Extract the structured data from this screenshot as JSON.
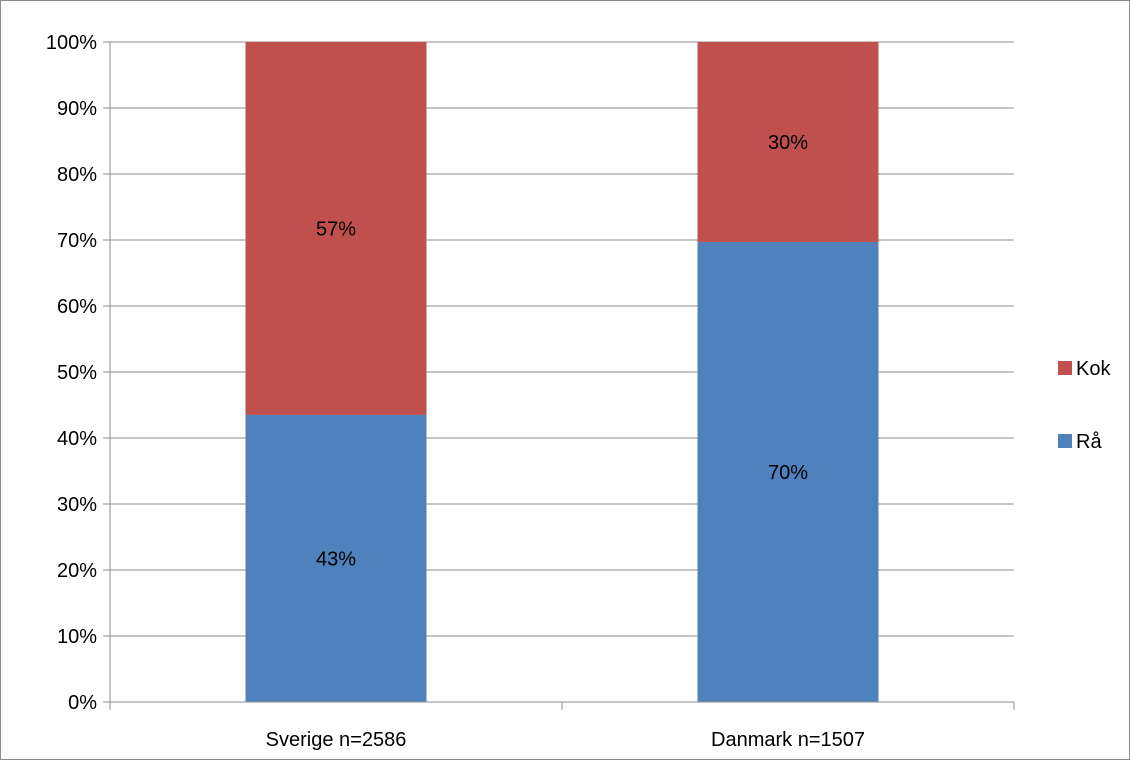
{
  "chart_data": {
    "type": "bar",
    "stacked": true,
    "percent": true,
    "title": "",
    "xlabel": "",
    "ylabel": "",
    "ylim": [
      0,
      100
    ],
    "y_ticks": [
      "0%",
      "10%",
      "20%",
      "30%",
      "40%",
      "50%",
      "60%",
      "70%",
      "80%",
      "90%",
      "100%"
    ],
    "grid": true,
    "legend_position": "right",
    "categories": [
      "Sverige n=2586",
      "Danmark n=1507"
    ],
    "series": [
      {
        "name": "Rå",
        "values": [
          43.5,
          69.7
        ],
        "labels": [
          "43%",
          "70%"
        ],
        "color": "#4f81bd"
      },
      {
        "name": "Kok",
        "values": [
          56.5,
          30.3
        ],
        "labels": [
          "57%",
          "30%"
        ],
        "color": "#c0504d"
      }
    ],
    "legend_order": [
      "Kok",
      "Rå"
    ]
  }
}
